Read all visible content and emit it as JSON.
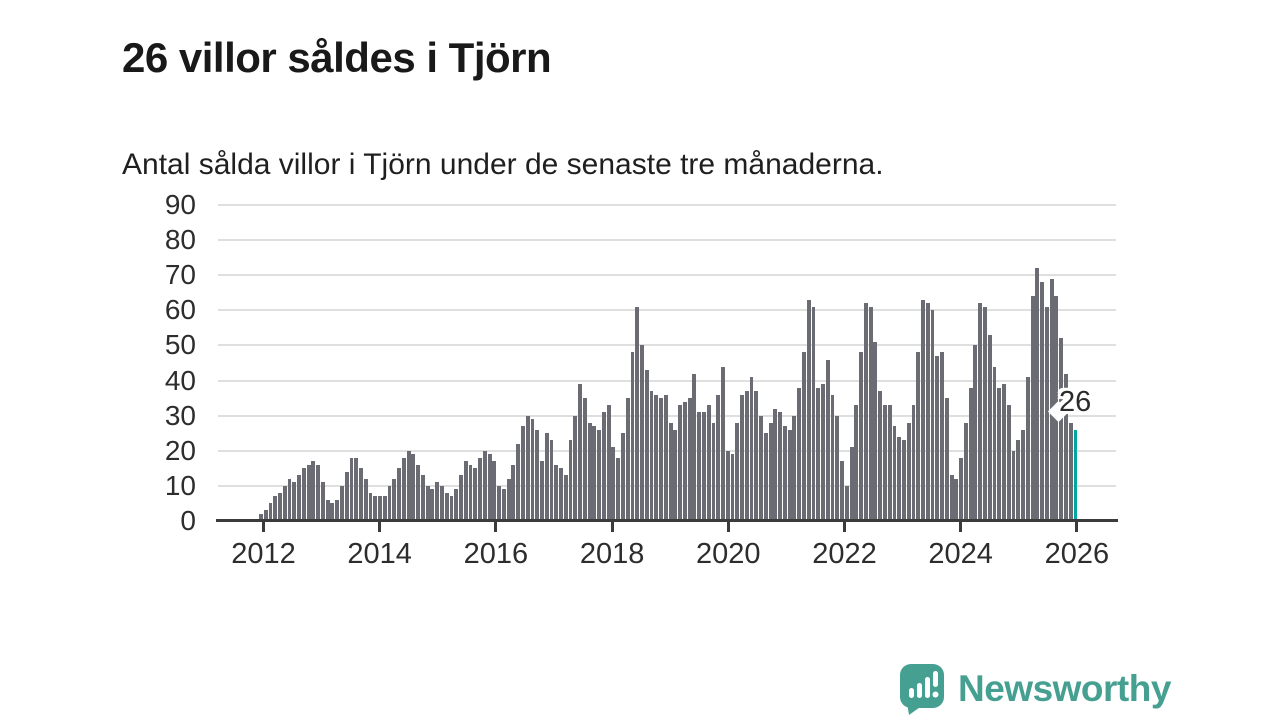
{
  "header": {
    "title": "26 villor såldes i Tjörn",
    "subtitle": "Antal sålda villor i Tjörn under de senaste tre månaderna."
  },
  "chart_data": {
    "type": "bar",
    "title": "26 villor såldes i Tjörn",
    "subtitle": "Antal sålda villor i Tjörn under de senaste tre månaderna.",
    "xlabel": "",
    "ylabel": "",
    "x_start": "2011-12",
    "x_interval": "month",
    "ylim": [
      0,
      90
    ],
    "yticks": [
      0,
      10,
      20,
      30,
      40,
      50,
      60,
      70,
      80,
      90
    ],
    "xticks": [
      2012,
      2014,
      2016,
      2018,
      2020,
      2022,
      2024,
      2026
    ],
    "grid": true,
    "legend": "none",
    "values": [
      2,
      3,
      5,
      7,
      8,
      10,
      12,
      11,
      13,
      15,
      16,
      17,
      16,
      11,
      6,
      5,
      6,
      10,
      14,
      18,
      18,
      15,
      12,
      8,
      7,
      7,
      7,
      10,
      12,
      15,
      18,
      20,
      19,
      16,
      13,
      10,
      9,
      11,
      10,
      8,
      7,
      9,
      13,
      17,
      16,
      15,
      18,
      20,
      19,
      17,
      10,
      9,
      12,
      16,
      22,
      27,
      30,
      29,
      26,
      17,
      25,
      23,
      16,
      15,
      13,
      23,
      30,
      39,
      35,
      28,
      27,
      26,
      31,
      33,
      21,
      18,
      25,
      35,
      48,
      61,
      50,
      43,
      37,
      36,
      35,
      36,
      28,
      26,
      33,
      34,
      35,
      42,
      31,
      31,
      33,
      28,
      36,
      44,
      20,
      19,
      28,
      36,
      37,
      41,
      37,
      30,
      25,
      28,
      32,
      31,
      27,
      26,
      30,
      38,
      48,
      63,
      61,
      38,
      39,
      46,
      36,
      30,
      17,
      10,
      21,
      33,
      48,
      62,
      61,
      51,
      37,
      33,
      33,
      27,
      24,
      23,
      28,
      33,
      48,
      63,
      62,
      60,
      47,
      48,
      35,
      13,
      12,
      18,
      28,
      38,
      50,
      62,
      61,
      53,
      44,
      38,
      39,
      33,
      20,
      23,
      26,
      41,
      64,
      72,
      68,
      61,
      69,
      64,
      52,
      42,
      28,
      26
    ],
    "highlight": {
      "position": "last",
      "value": 26,
      "label": "26",
      "color": "#00a79e"
    },
    "bar_color": "#6b6b74"
  },
  "annotation": {
    "label": "26"
  },
  "footer": {
    "brand": "Newsworthy"
  },
  "colors": {
    "bar_gray": "#6b6b74",
    "highlight_teal": "#00a79e",
    "logo_teal": "#46a091",
    "axis_text": "#2d2d2d",
    "gridline": "#dfdfdf",
    "axis_line": "#3b3b3b",
    "title_text": "#191919"
  }
}
